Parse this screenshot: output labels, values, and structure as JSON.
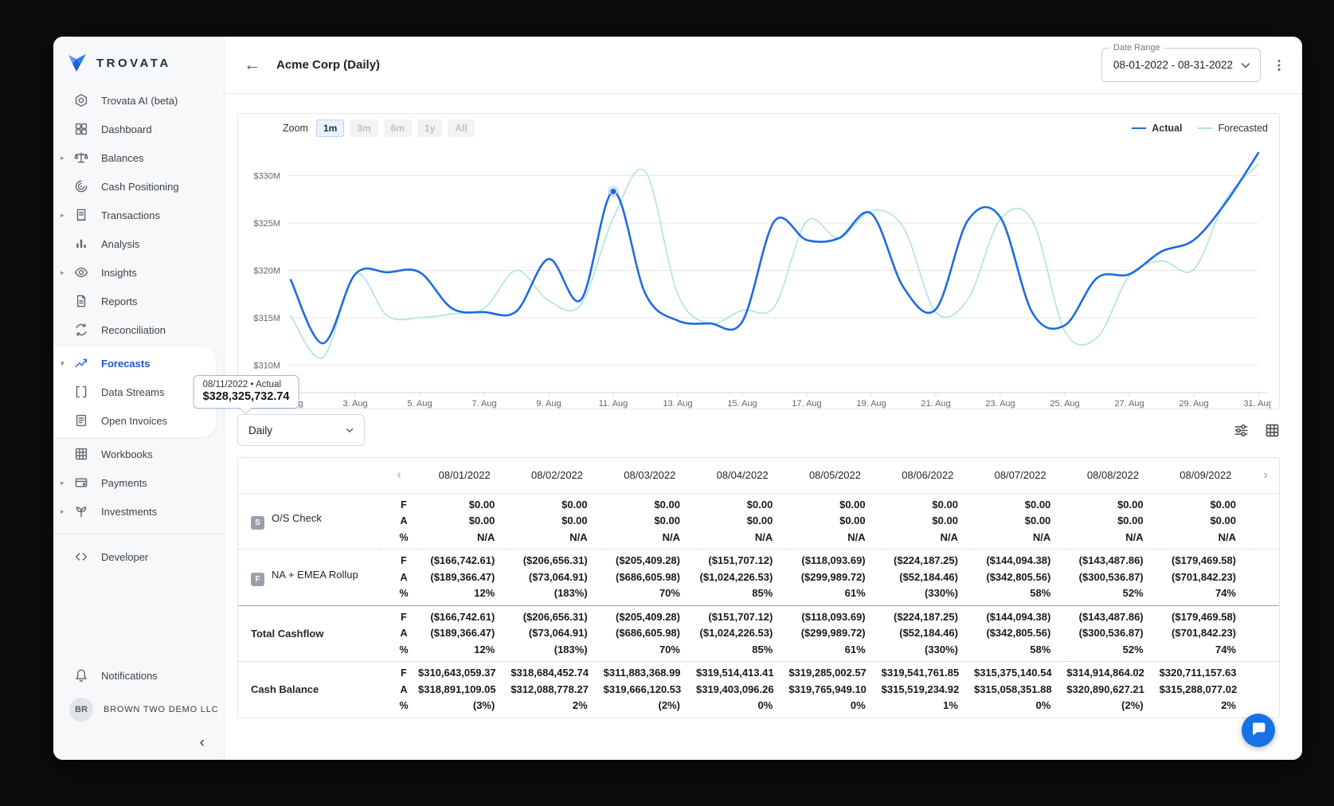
{
  "sidebar": {
    "logo_text": "TROVATA",
    "items": [
      {
        "id": "trovata-ai",
        "label": "Trovata AI (beta)",
        "icon": "trovata-ai-icon"
      },
      {
        "id": "dashboard",
        "label": "Dashboard",
        "icon": "dashboard-icon"
      },
      {
        "id": "balances",
        "label": "Balances",
        "icon": "balances-icon",
        "expandable": true
      },
      {
        "id": "cash-positioning",
        "label": "Cash Positioning",
        "icon": "cash-positioning-icon"
      },
      {
        "id": "transactions",
        "label": "Transactions",
        "icon": "transactions-icon",
        "expandable": true
      },
      {
        "id": "analysis",
        "label": "Analysis",
        "icon": "analysis-icon"
      },
      {
        "id": "insights",
        "label": "Insights",
        "icon": "insights-icon",
        "expandable": true
      },
      {
        "id": "reports",
        "label": "Reports",
        "icon": "reports-icon"
      },
      {
        "id": "reconciliation",
        "label": "Reconciliation",
        "icon": "reconciliation-icon"
      },
      {
        "id": "forecasts",
        "label": "Forecasts",
        "icon": "forecasts-icon",
        "expandable": true,
        "expanded": true,
        "active": true,
        "group": "forecasts"
      },
      {
        "id": "data-streams",
        "label": "Data Streams",
        "icon": "data-streams-icon",
        "group": "forecasts"
      },
      {
        "id": "open-invoices",
        "label": "Open Invoices",
        "icon": "open-invoices-icon",
        "group": "forecasts"
      },
      {
        "id": "workbooks",
        "label": "Workbooks",
        "icon": "workbooks-icon"
      },
      {
        "id": "payments",
        "label": "Payments",
        "icon": "payments-icon",
        "expandable": true
      },
      {
        "id": "investments",
        "label": "Investments",
        "icon": "investments-icon",
        "expandable": true
      }
    ],
    "developer": {
      "label": "Developer",
      "icon": "developer-icon"
    },
    "notifications": {
      "label": "Notifications",
      "icon": "bell-icon"
    },
    "account": {
      "initials": "BR",
      "name": "BROWN TWO DEMO LLC"
    },
    "collapse_glyph": "‹"
  },
  "header": {
    "back_glyph": "←",
    "title": "Acme Corp (Daily)",
    "date_range": {
      "label": "Date Range",
      "value": "08-01-2022 - 08-31-2022"
    }
  },
  "chart_data": {
    "type": "line",
    "title": "",
    "xlabel": "",
    "ylabel": "",
    "x_unit": "day of August 2022",
    "x": [
      1,
      2,
      3,
      4,
      5,
      6,
      7,
      8,
      9,
      10,
      11,
      12,
      13,
      14,
      15,
      16,
      17,
      18,
      19,
      20,
      21,
      22,
      23,
      24,
      25,
      26,
      27,
      28,
      29,
      30,
      31
    ],
    "x_ticks": [
      {
        "day": 1,
        "label": "1. Aug"
      },
      {
        "day": 3,
        "label": "3. Aug"
      },
      {
        "day": 5,
        "label": "5. Aug"
      },
      {
        "day": 7,
        "label": "7. Aug"
      },
      {
        "day": 9,
        "label": "9. Aug"
      },
      {
        "day": 11,
        "label": "11. Aug"
      },
      {
        "day": 13,
        "label": "13. Aug"
      },
      {
        "day": 15,
        "label": "15. Aug"
      },
      {
        "day": 17,
        "label": "17. Aug"
      },
      {
        "day": 19,
        "label": "19. Aug"
      },
      {
        "day": 21,
        "label": "21. Aug"
      },
      {
        "day": 23,
        "label": "23. Aug"
      },
      {
        "day": 25,
        "label": "25. Aug"
      },
      {
        "day": 27,
        "label": "27. Aug"
      },
      {
        "day": 29,
        "label": "29. Aug"
      },
      {
        "day": 31,
        "label": "31. Aug"
      }
    ],
    "y_ticks": [
      {
        "value": 310,
        "label": "$310M"
      },
      {
        "value": 315,
        "label": "$315M"
      },
      {
        "value": 320,
        "label": "$320M"
      },
      {
        "value": 325,
        "label": "$325M"
      },
      {
        "value": 330,
        "label": "$330M"
      }
    ],
    "y_range_millions": [
      307,
      334
    ],
    "grid": true,
    "legend_position": "top-right",
    "series": [
      {
        "name": "Actual",
        "color": "#1f6be0",
        "width": 2.6,
        "values_millions": [
          319.0,
          312.3,
          319.6,
          319.8,
          319.8,
          316.0,
          315.6,
          315.7,
          321.2,
          316.9,
          328.33,
          317.5,
          314.7,
          314.4,
          314.6,
          325.2,
          323.2,
          323.4,
          326.0,
          318.2,
          315.9,
          325.3,
          325.6,
          315.5,
          314.2,
          319.2,
          319.6,
          322.0,
          323.2,
          327.2,
          332.4
        ]
      },
      {
        "name": "Forecasted",
        "color": "#abe5e0",
        "width": 1.6,
        "values_millions": [
          315.2,
          310.8,
          319.6,
          315.2,
          315.0,
          315.4,
          316.0,
          320.0,
          316.8,
          316.4,
          325.5,
          330.4,
          317.5,
          314.4,
          315.8,
          316.2,
          325.2,
          323.4,
          326.3,
          324.5,
          315.6,
          317.0,
          325.4,
          325.2,
          313.6,
          312.9,
          319.4,
          321.0,
          320.1,
          327.5,
          331.2
        ]
      }
    ],
    "tooltip": {
      "date": "08/11/2022",
      "series": "Actual",
      "value": "$328,325,732.74",
      "day": 11,
      "value_millions": 328.326
    },
    "zoom_label": "Zoom",
    "zoom_options": [
      "1m",
      "3m",
      "6m",
      "1y",
      "All"
    ],
    "zoom_selected": "1m"
  },
  "table": {
    "period_selector": "Daily",
    "metric_labels": [
      "F",
      "A",
      "%"
    ],
    "prev_glyph": "‹",
    "next_glyph": "›",
    "columns": [
      "08/01/2022",
      "08/02/2022",
      "08/03/2022",
      "08/04/2022",
      "08/05/2022",
      "08/06/2022",
      "08/07/2022",
      "08/08/2022",
      "08/09/2022"
    ],
    "rows": [
      {
        "name": "O/S Check",
        "badge": "S",
        "emphasis": false,
        "separator": "none",
        "F": [
          "$0.00",
          "$0.00",
          "$0.00",
          "$0.00",
          "$0.00",
          "$0.00",
          "$0.00",
          "$0.00",
          "$0.00"
        ],
        "A": [
          "$0.00",
          "$0.00",
          "$0.00",
          "$0.00",
          "$0.00",
          "$0.00",
          "$0.00",
          "$0.00",
          "$0.00"
        ],
        "pct": [
          "N/A",
          "N/A",
          "N/A",
          "N/A",
          "N/A",
          "N/A",
          "N/A",
          "N/A",
          "N/A"
        ]
      },
      {
        "name": "NA + EMEA Rollup",
        "badge": "F",
        "emphasis": false,
        "separator": "dotted",
        "F": [
          "($166,742.61)",
          "($206,656.31)",
          "($205,409.28)",
          "($151,707.12)",
          "($118,093.69)",
          "($224,187.25)",
          "($144,094.38)",
          "($143,487.86)",
          "($179,469.58)"
        ],
        "A": [
          "($189,366.47)",
          "($73,064.91)",
          "($686,605.98)",
          "($1,024,226.53)",
          "($299,989.72)",
          "($52,184.46)",
          "($342,805.56)",
          "($300,536.87)",
          "($701,842.23)"
        ],
        "pct": [
          "12%",
          "(183%)",
          "70%",
          "85%",
          "61%",
          "(330%)",
          "58%",
          "52%",
          "74%"
        ]
      },
      {
        "name": "Total Cashflow",
        "badge": null,
        "emphasis": true,
        "separator": "solid",
        "F": [
          "($166,742.61)",
          "($206,656.31)",
          "($205,409.28)",
          "($151,707.12)",
          "($118,093.69)",
          "($224,187.25)",
          "($144,094.38)",
          "($143,487.86)",
          "($179,469.58)"
        ],
        "A": [
          "($189,366.47)",
          "($73,064.91)",
          "($686,605.98)",
          "($1,024,226.53)",
          "($299,989.72)",
          "($52,184.46)",
          "($342,805.56)",
          "($300,536.87)",
          "($701,842.23)"
        ],
        "pct": [
          "12%",
          "(183%)",
          "70%",
          "85%",
          "61%",
          "(330%)",
          "58%",
          "52%",
          "74%"
        ]
      },
      {
        "name": "Cash Balance",
        "badge": null,
        "emphasis": true,
        "separator": "dotted",
        "F": [
          "$310,643,059.37",
          "$318,684,452.74",
          "$311,883,368.99",
          "$319,514,413.41",
          "$319,285,002.57",
          "$319,541,761.85",
          "$315,375,140.54",
          "$314,914,864.02",
          "$320,711,157.63"
        ],
        "A": [
          "$318,891,109.05",
          "$312,088,778.27",
          "$319,666,120.53",
          "$319,403,096.26",
          "$319,765,949.10",
          "$315,519,234.92",
          "$315,058,351.88",
          "$320,890,627.21",
          "$315,288,077.02"
        ],
        "pct": [
          "(3%)",
          "2%",
          "(2%)",
          "0%",
          "0%",
          "1%",
          "0%",
          "(2%)",
          "2%"
        ]
      }
    ]
  },
  "colors": {
    "actual_line": "#1f6be0",
    "forecast_line": "#abe5e0",
    "nav_active": "#1659d8",
    "chat_fab": "#1672e4",
    "sidebar_bg": "#f7f8f9",
    "grid_line": "#e7e7e7",
    "axis_line": "#ccd6eb"
  },
  "chat": {
    "icon": "chat-bubble-icon"
  }
}
